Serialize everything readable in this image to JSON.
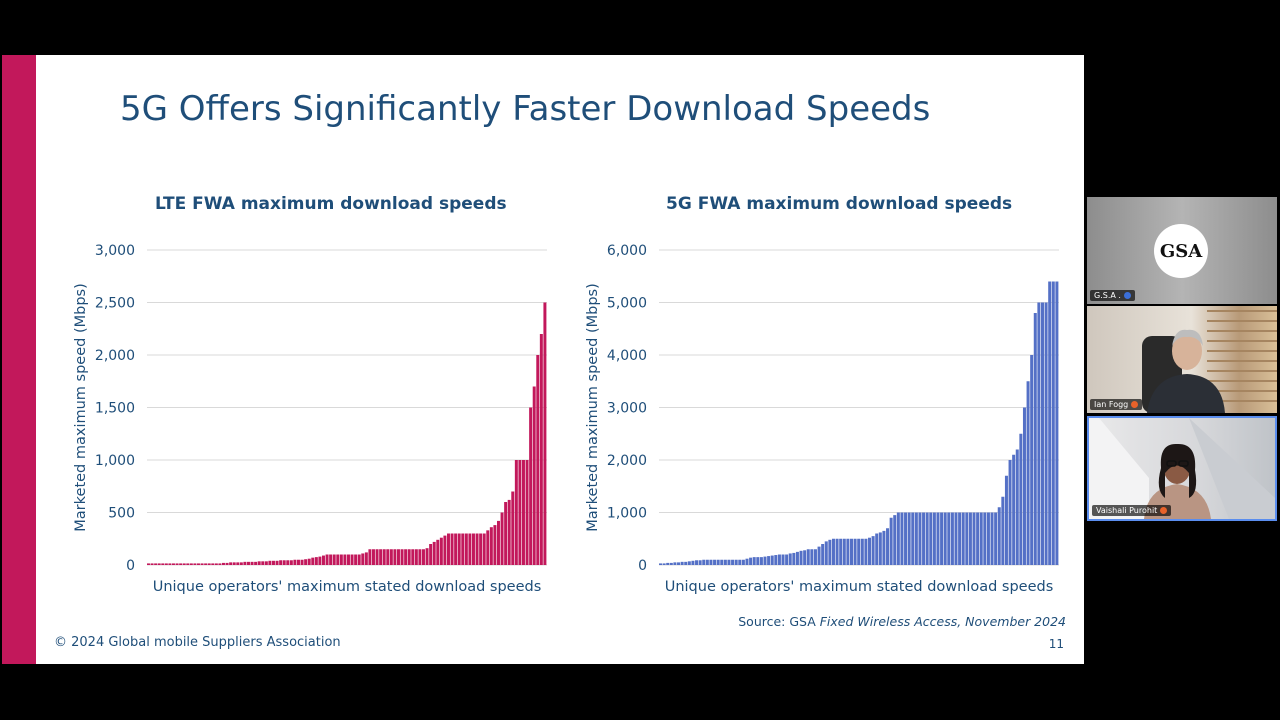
{
  "slide": {
    "title": "5G Offers Significantly Faster Download Speeds",
    "footer": "© 2024 Global mobile Suppliers Association",
    "source_prefix": "Source: GSA ",
    "source_title": "Fixed Wireless Access",
    "source_suffix": ", November 2024",
    "page_number": "11",
    "accent_color": "#c2185b",
    "text_color": "#1f4e79"
  },
  "chart_data": [
    {
      "type": "bar",
      "title": "LTE FWA maximum download speeds",
      "xlabel": "Unique operators' maximum stated download speeds",
      "ylabel": "Marketed maximum speed (Mbps)",
      "ylim": [
        0,
        3000
      ],
      "ytick_labels": [
        "0",
        "500",
        "1,000",
        "1,500",
        "2,000",
        "2,500",
        "3,000"
      ],
      "ytick_values": [
        0,
        500,
        1000,
        1500,
        2000,
        2500,
        3000
      ],
      "color": "#c2185b",
      "grid": true,
      "values": [
        15,
        15,
        15,
        15,
        15,
        15,
        15,
        15,
        15,
        15,
        15,
        15,
        15,
        15,
        15,
        15,
        15,
        15,
        15,
        15,
        15,
        20,
        20,
        25,
        25,
        25,
        25,
        30,
        30,
        30,
        30,
        35,
        35,
        35,
        40,
        40,
        40,
        45,
        45,
        45,
        45,
        50,
        50,
        50,
        55,
        60,
        70,
        75,
        80,
        90,
        100,
        100,
        100,
        100,
        100,
        100,
        100,
        100,
        100,
        100,
        110,
        120,
        150,
        150,
        150,
        150,
        150,
        150,
        150,
        150,
        150,
        150,
        150,
        150,
        150,
        150,
        150,
        150,
        160,
        200,
        220,
        240,
        260,
        280,
        300,
        300,
        300,
        300,
        300,
        300,
        300,
        300,
        300,
        300,
        300,
        330,
        360,
        380,
        420,
        500,
        600,
        620,
        700,
        1000,
        1000,
        1000,
        1000,
        1500,
        1700,
        2000,
        2200,
        2500
      ]
    },
    {
      "type": "bar",
      "title": "5G FWA maximum download speeds",
      "xlabel": "Unique operators' maximum stated download speeds",
      "ylabel": "Marketed maximum speed (Mbps)",
      "ylim": [
        0,
        6000
      ],
      "ytick_labels": [
        "0",
        "1,000",
        "2,000",
        "3,000",
        "4,000",
        "5,000",
        "6,000"
      ],
      "ytick_values": [
        0,
        1000,
        2000,
        3000,
        4000,
        5000,
        6000
      ],
      "color": "#5470c6",
      "grid": true,
      "values": [
        30,
        30,
        40,
        40,
        50,
        50,
        60,
        60,
        70,
        80,
        90,
        90,
        100,
        100,
        100,
        100,
        100,
        100,
        100,
        100,
        100,
        100,
        100,
        100,
        120,
        140,
        150,
        150,
        150,
        160,
        170,
        180,
        190,
        200,
        200,
        200,
        220,
        230,
        250,
        270,
        280,
        300,
        300,
        300,
        350,
        400,
        450,
        480,
        500,
        500,
        500,
        500,
        500,
        500,
        500,
        500,
        500,
        500,
        520,
        550,
        600,
        620,
        650,
        700,
        900,
        950,
        1000,
        1000,
        1000,
        1000,
        1000,
        1000,
        1000,
        1000,
        1000,
        1000,
        1000,
        1000,
        1000,
        1000,
        1000,
        1000,
        1000,
        1000,
        1000,
        1000,
        1000,
        1000,
        1000,
        1000,
        1000,
        1000,
        1000,
        1000,
        1100,
        1300,
        1700,
        2000,
        2100,
        2200,
        2500,
        3000,
        3500,
        4000,
        4800,
        5000,
        5000,
        5000,
        5400,
        5400,
        5400
      ]
    }
  ],
  "participants": [
    {
      "name": "G.S.A .",
      "logo_text": "GSA",
      "mic_color": "#3b6fd8",
      "mic_icon": "pin-icon"
    },
    {
      "name": "Ian Fogg",
      "mic_color": "#e8622a",
      "mic_icon": "mic-muted-icon"
    },
    {
      "name": "Vaishali Purohit",
      "mic_color": "#e8622a",
      "mic_icon": "mic-muted-icon"
    }
  ]
}
